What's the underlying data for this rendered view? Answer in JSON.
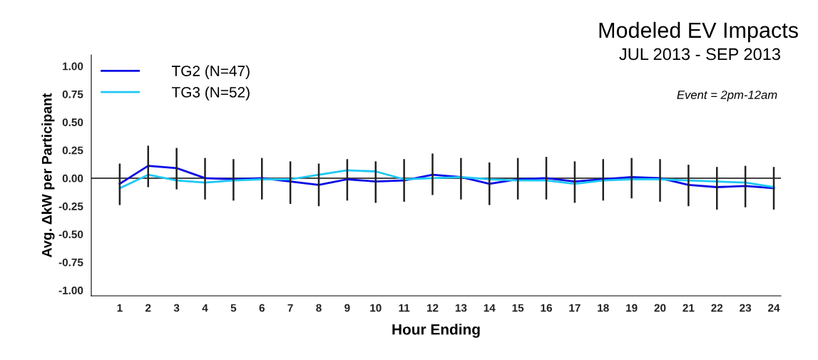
{
  "chart_data": {
    "type": "line",
    "title": "Modeled EV Impacts",
    "subtitle": "JUL 2013 - SEP 2013",
    "xlabel": "Hour Ending",
    "ylabel": "Avg. ΔkW per Participant",
    "categories": [
      "1",
      "2",
      "3",
      "4",
      "5",
      "6",
      "7",
      "8",
      "9",
      "10",
      "11",
      "12",
      "13",
      "14",
      "15",
      "16",
      "17",
      "18",
      "19",
      "20",
      "21",
      "22",
      "23",
      "24"
    ],
    "series": [
      {
        "name": "TG2 (N=47)",
        "color": "#0a0ae6",
        "values": [
          -0.05,
          0.11,
          0.09,
          0.0,
          -0.01,
          0.0,
          -0.03,
          -0.06,
          -0.01,
          -0.03,
          -0.02,
          0.03,
          0.01,
          -0.05,
          -0.01,
          0.0,
          -0.03,
          -0.01,
          0.01,
          0.0,
          -0.06,
          -0.08,
          -0.07,
          -0.09
        ],
        "errors": [
          [
            -0.24,
            0.13
          ],
          [
            -0.08,
            0.29
          ],
          [
            -0.1,
            0.27
          ],
          [
            -0.19,
            0.18
          ],
          [
            -0.2,
            0.17
          ],
          [
            -0.19,
            0.18
          ],
          [
            -0.23,
            0.15
          ],
          [
            -0.25,
            0.13
          ],
          [
            -0.2,
            0.17
          ],
          [
            -0.22,
            0.15
          ],
          [
            -0.21,
            0.17
          ],
          [
            -0.15,
            0.22
          ],
          [
            -0.19,
            0.18
          ],
          [
            -0.24,
            0.14
          ],
          [
            -0.19,
            0.18
          ],
          [
            -0.19,
            0.19
          ],
          [
            -0.22,
            0.15
          ],
          [
            -0.2,
            0.17
          ],
          [
            -0.18,
            0.18
          ],
          [
            -0.21,
            0.17
          ],
          [
            -0.25,
            0.12
          ],
          [
            -0.28,
            0.1
          ],
          [
            -0.26,
            0.11
          ],
          [
            -0.28,
            0.1
          ]
        ]
      },
      {
        "name": "TG3 (N=52)",
        "color": "#1ec8f5",
        "values": [
          -0.09,
          0.03,
          -0.02,
          -0.04,
          -0.02,
          -0.01,
          -0.01,
          0.03,
          0.07,
          0.06,
          -0.01,
          0.0,
          0.01,
          -0.01,
          -0.02,
          -0.02,
          -0.05,
          -0.02,
          -0.01,
          -0.01,
          -0.02,
          -0.03,
          -0.04,
          -0.08
        ]
      }
    ],
    "ylim": [
      -1.05,
      1.1
    ],
    "yticks": [
      {
        "value": -1,
        "label": "-1.00"
      },
      {
        "value": -0.75,
        "label": "-0.75"
      },
      {
        "value": -0.5,
        "label": "-0.50"
      },
      {
        "value": -0.25,
        "label": "-0.25"
      },
      {
        "value": 0,
        "label": "0.00"
      },
      {
        "value": 0.25,
        "label": "0.25"
      },
      {
        "value": 0.5,
        "label": "0.50"
      },
      {
        "value": 0.75,
        "label": "0.75"
      },
      {
        "value": 1,
        "label": "1.00"
      }
    ],
    "ref_lines": [
      {
        "axis": "y",
        "value": 0,
        "color": "#444444"
      }
    ],
    "annotations": [
      "Event = 2pm-12am"
    ],
    "legend": "top left",
    "grid": false,
    "marker": "none",
    "line_style": "solid"
  }
}
